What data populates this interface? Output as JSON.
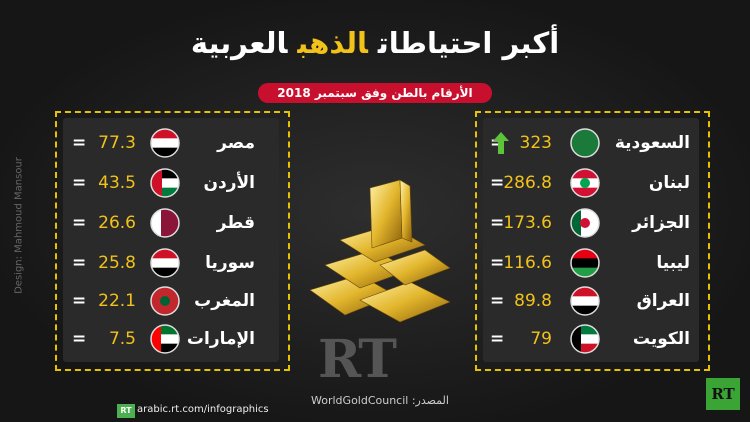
{
  "header": {
    "title_parts": [
      "أكبر احتياطات",
      "الذهب",
      "العربية"
    ],
    "subtitle": "الأرقام بالطن وفق سبتمبر 2018"
  },
  "equals": "=",
  "right_panel": {
    "rows": [
      {
        "country": "السعودية",
        "value": 323
      },
      {
        "country": "لبنان",
        "value": 286.8
      },
      {
        "country": "الجزائر",
        "value": 173.6
      },
      {
        "country": "ليبيا",
        "value": 116.6
      },
      {
        "country": "العراق",
        "value": 89.8
      },
      {
        "country": "الكويت",
        "value": 79
      }
    ]
  },
  "left_panel": {
    "rows": [
      {
        "country": "مصر",
        "value": 77.3
      },
      {
        "country": "الأردن",
        "value": 43.5
      },
      {
        "country": "قطر",
        "value": 26.6
      },
      {
        "country": "سوريا",
        "value": 25.8
      },
      {
        "country": "المغرب",
        "value": 22.1
      },
      {
        "country": "الإمارات",
        "value": 7.5
      }
    ]
  },
  "credit": "Design: Mahmoud Mansour",
  "logo": "RT",
  "source": "المصدر: WorldGoldCouncil",
  "url": "arabic.rt.com/infographics"
}
